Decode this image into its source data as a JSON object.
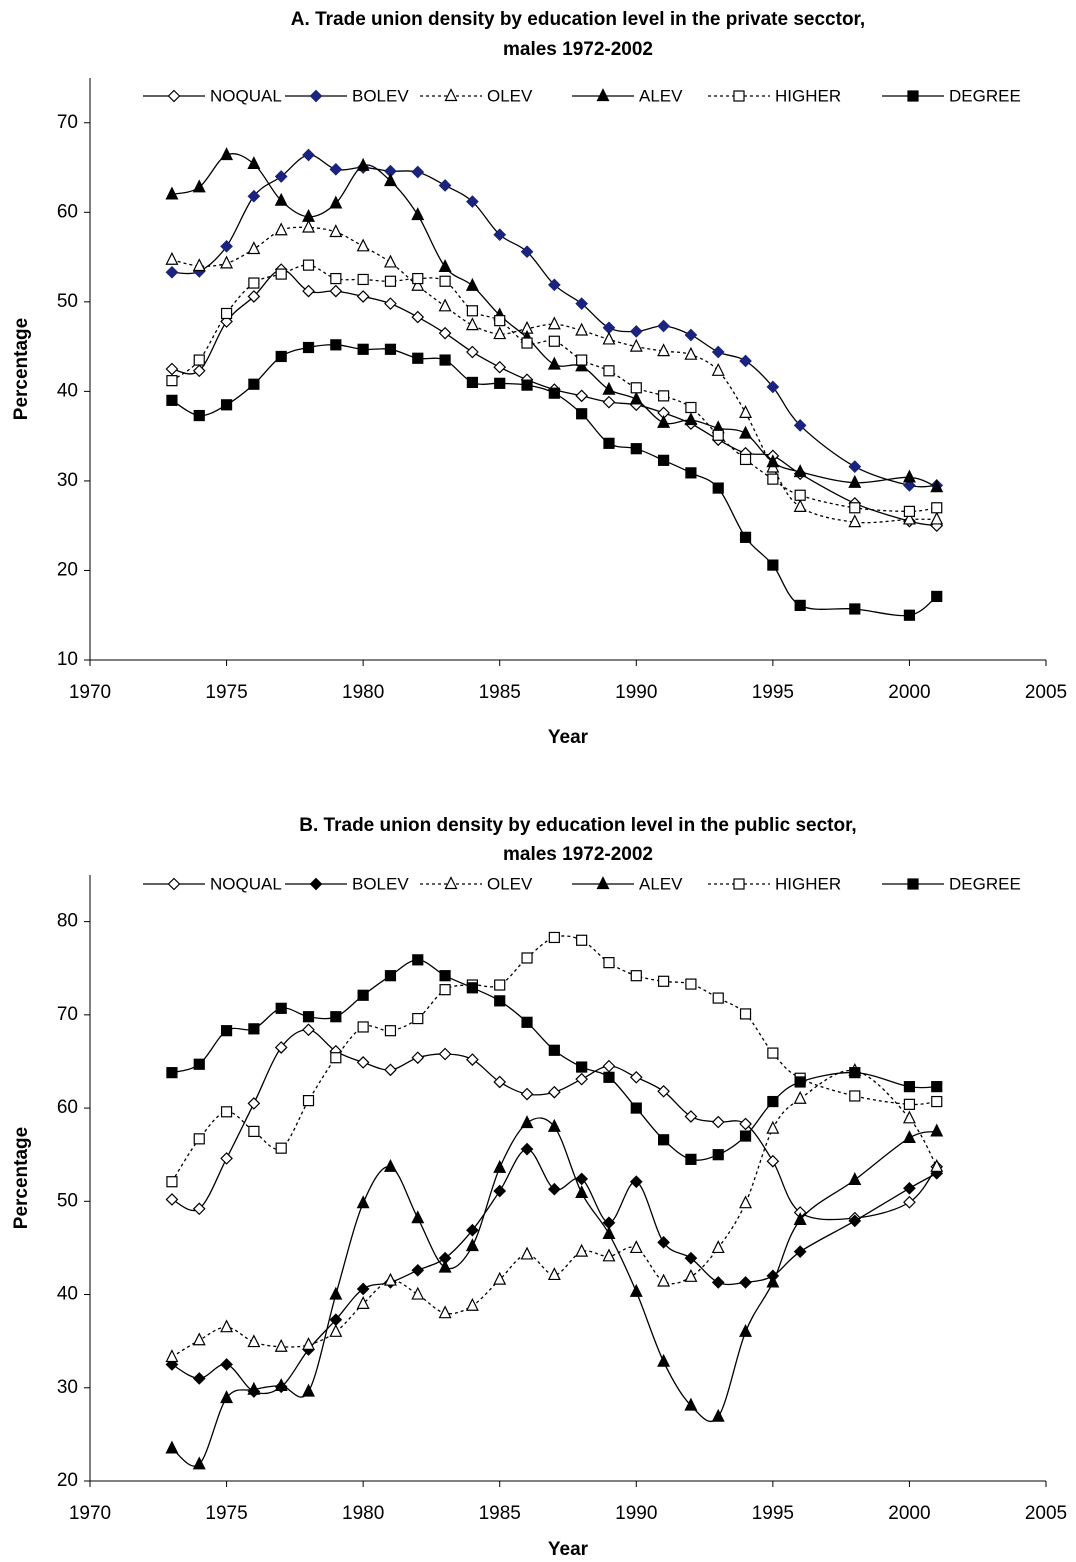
{
  "chart_data": [
    {
      "type": "line",
      "title": [
        "A. Trade union density by education level in the private secctor,",
        "males 1972-2002"
      ],
      "xlabel": "Year",
      "ylabel": "Percentage",
      "xlim": [
        1970,
        2005
      ],
      "xticks": [
        1970,
        1975,
        1980,
        1985,
        1990,
        1995,
        2000,
        2005
      ],
      "ylim": [
        10,
        75
      ],
      "yticks": [
        10,
        20,
        30,
        40,
        50,
        60,
        70
      ],
      "legend": "top",
      "grid": false,
      "x": [
        1973,
        1974,
        1975,
        1976,
        1977,
        1978,
        1979,
        1980,
        1981,
        1982,
        1983,
        1984,
        1985,
        1986,
        1987,
        1988,
        1989,
        1990,
        1991,
        1992,
        1993,
        1994,
        1995,
        1996,
        1998,
        2000,
        2001
      ],
      "series": [
        {
          "name": "NOQUAL",
          "color": "#000000",
          "marker": "diamond",
          "filled": false,
          "dashed": false,
          "values": [
            42.5,
            42.3,
            47.8,
            50.6,
            53.6,
            51.2,
            51.2,
            50.6,
            49.8,
            48.3,
            46.5,
            44.4,
            42.7,
            41.3,
            40.2,
            39.5,
            38.8,
            38.5,
            37.6,
            36.4,
            34.6,
            33.1,
            32.8,
            30.8,
            27.5,
            25.5,
            25
          ]
        },
        {
          "name": "BOLEV",
          "color": "#000000",
          "marker_color": "#1a237e",
          "marker": "diamond",
          "filled": true,
          "dashed": false,
          "values": [
            53.3,
            53.4,
            56.2,
            61.8,
            64,
            66.4,
            64.8,
            65,
            64.6,
            64.5,
            63,
            61.2,
            57.5,
            55.6,
            51.9,
            49.8,
            47.1,
            46.7,
            47.3,
            46.3,
            44.4,
            43.4,
            40.5,
            36.2,
            31.6,
            29.5,
            29.5
          ]
        },
        {
          "name": "OLEV",
          "color": "#000000",
          "marker": "triangle",
          "filled": false,
          "dashed": true,
          "values": [
            54.7,
            54,
            54.3,
            55.9,
            58,
            58.3,
            57.8,
            56.2,
            54.4,
            51.8,
            49.5,
            47.4,
            46.4,
            47,
            47.5,
            46.8,
            45.8,
            45,
            44.5,
            44.1,
            42.3,
            37.6,
            31.5,
            27.1,
            25.4,
            25.7,
            25.7
          ]
        },
        {
          "name": "ALEV",
          "color": "#000000",
          "marker": "triangle",
          "filled": true,
          "dashed": false,
          "values": [
            62,
            62.8,
            66.4,
            65.4,
            61.3,
            59.5,
            61,
            65.2,
            63.5,
            59.7,
            53.9,
            51.8,
            48.5,
            46,
            43,
            42.8,
            40.2,
            39.1,
            36.5,
            36.8,
            35.9,
            35.3,
            32.1,
            31,
            29.8,
            30.4,
            29.3
          ]
        },
        {
          "name": "HIGHER",
          "color": "#000000",
          "marker": "square",
          "filled": false,
          "dashed": true,
          "values": [
            41.2,
            43.5,
            48.7,
            52.1,
            53.1,
            54.1,
            52.6,
            52.5,
            52.3,
            52.6,
            52.3,
            49,
            47.9,
            45.4,
            45.6,
            43.5,
            42.3,
            40.4,
            39.5,
            38.2,
            35.1,
            32.4,
            30.2,
            28.4,
            27,
            26.6,
            27
          ]
        },
        {
          "name": "DEGREE",
          "color": "#000000",
          "marker": "square",
          "filled": true,
          "dashed": false,
          "values": [
            39,
            37.3,
            38.5,
            40.8,
            43.9,
            44.9,
            45.2,
            44.7,
            44.7,
            43.7,
            43.5,
            41,
            40.9,
            40.7,
            39.8,
            37.5,
            34.2,
            33.6,
            32.3,
            30.9,
            29.2,
            23.7,
            20.6,
            16.1,
            15.7,
            15,
            17.1
          ]
        }
      ]
    },
    {
      "type": "line",
      "title": [
        "B. Trade union density by education level in the public sector,",
        "males 1972-2002"
      ],
      "xlabel": "Year",
      "ylabel": "Percentage",
      "xlim": [
        1970,
        2005
      ],
      "xticks": [
        1970,
        1975,
        1980,
        1985,
        1990,
        1995,
        2000,
        2005
      ],
      "ylim": [
        20,
        85
      ],
      "yticks": [
        20,
        30,
        40,
        50,
        60,
        70,
        80
      ],
      "legend": "top",
      "grid": false,
      "x": [
        1973,
        1974,
        1975,
        1976,
        1977,
        1978,
        1979,
        1980,
        1981,
        1982,
        1983,
        1984,
        1985,
        1986,
        1987,
        1988,
        1989,
        1990,
        1991,
        1992,
        1993,
        1994,
        1995,
        1996,
        1998,
        2000,
        2001
      ],
      "series": [
        {
          "name": "NOQUAL",
          "color": "#000000",
          "marker": "diamond",
          "filled": false,
          "dashed": false,
          "values": [
            50.2,
            49.2,
            54.6,
            60.5,
            66.5,
            68.4,
            66.1,
            64.9,
            64.1,
            65.4,
            65.8,
            65.2,
            62.8,
            61.5,
            61.7,
            63.1,
            64.5,
            63.3,
            61.8,
            59.1,
            58.5,
            58.3,
            54.3,
            48.8,
            48.2,
            49.9,
            53.7
          ]
        },
        {
          "name": "BOLEV",
          "color": "#000000",
          "marker": "diamond",
          "filled": true,
          "dashed": false,
          "values": [
            32.5,
            31,
            32.5,
            29.6,
            30.1,
            34.1,
            37.3,
            40.6,
            41.3,
            42.6,
            43.9,
            46.9,
            51.1,
            55.6,
            51.3,
            52.4,
            47.7,
            52.1,
            45.6,
            43.9,
            41.3,
            41.3,
            42,
            44.6,
            47.9,
            51.4,
            53
          ]
        },
        {
          "name": "OLEV",
          "color": "#000000",
          "marker": "triangle",
          "filled": false,
          "dashed": true,
          "values": [
            33.3,
            35.1,
            36.5,
            34.9,
            34.4,
            34.6,
            36,
            39,
            41.5,
            40,
            38,
            38.8,
            41.6,
            44.3,
            42.1,
            44.6,
            44.1,
            45,
            41.4,
            41.9,
            45,
            49.8,
            57.8,
            61,
            64,
            58.9,
            53.7
          ]
        },
        {
          "name": "ALEV",
          "color": "#000000",
          "marker": "triangle",
          "filled": true,
          "dashed": false,
          "values": [
            23.5,
            21.8,
            28.9,
            29.8,
            30.2,
            29.6,
            40,
            49.8,
            53.7,
            48.2,
            42.9,
            45.2,
            53.6,
            58.4,
            58,
            50.9,
            46.5,
            40.3,
            32.8,
            28.1,
            26.9,
            36,
            41.3,
            48,
            52.3,
            56.8,
            57.5
          ]
        },
        {
          "name": "HIGHER",
          "color": "#000000",
          "marker": "square",
          "filled": false,
          "dashed": true,
          "values": [
            52.1,
            56.7,
            59.6,
            57.5,
            55.7,
            60.8,
            65.4,
            68.7,
            68.3,
            69.6,
            72.7,
            73.2,
            73.2,
            76.1,
            78.3,
            78,
            75.6,
            74.2,
            73.6,
            73.3,
            71.8,
            70.1,
            65.9,
            63.2,
            61.3,
            60.4,
            60.7
          ]
        },
        {
          "name": "DEGREE",
          "color": "#000000",
          "marker": "square",
          "filled": true,
          "dashed": false,
          "values": [
            63.8,
            64.7,
            68.3,
            68.5,
            70.7,
            69.8,
            69.8,
            72.1,
            74.2,
            75.9,
            74.2,
            72.9,
            71.5,
            69.2,
            66.2,
            64.4,
            63.3,
            60,
            56.6,
            54.5,
            55,
            57,
            60.7,
            62.8,
            63.8,
            62.3,
            62.3
          ]
        }
      ]
    }
  ]
}
